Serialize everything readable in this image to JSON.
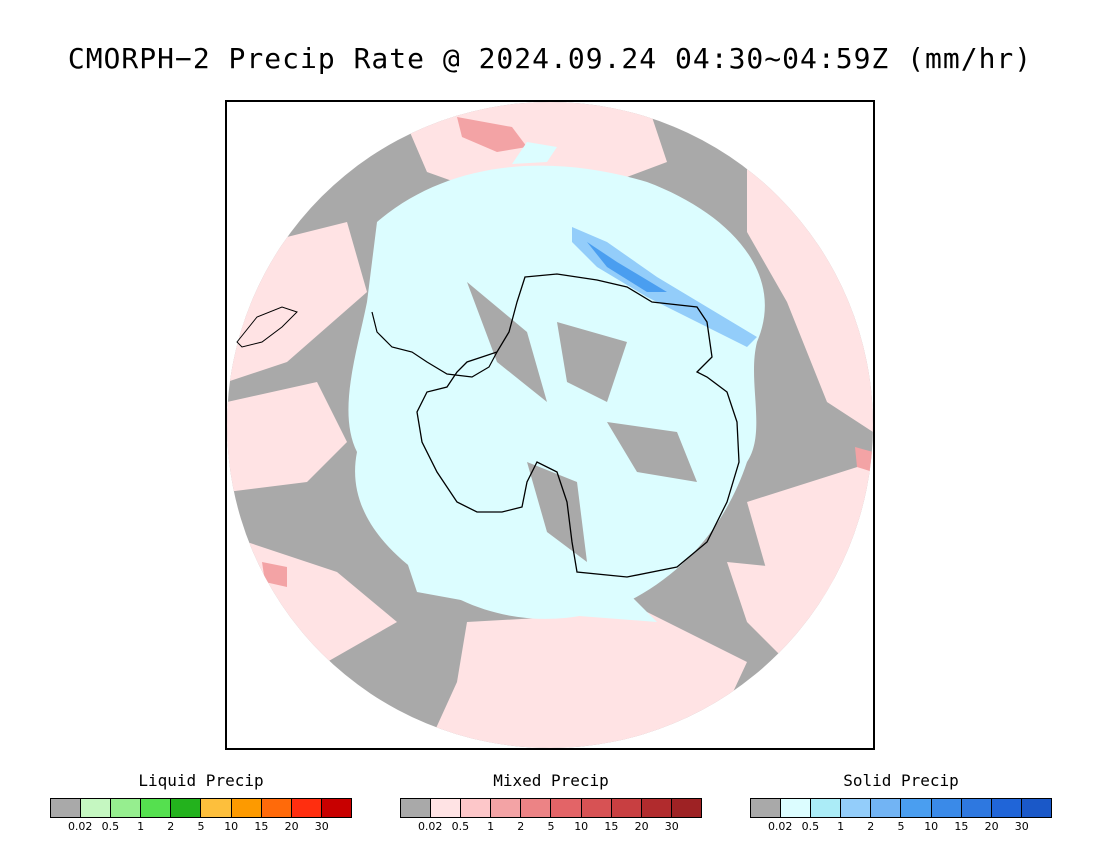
{
  "title": "CMORPH−2 Precip Rate @ 2024.09.24 04:30~04:59Z (mm/hr)",
  "legends": [
    {
      "label": "Liquid Precip",
      "colors": [
        "#a9a9a9",
        "#c5f7c1",
        "#96ee8f",
        "#55e04f",
        "#23b21d",
        "#fdbf3c",
        "#fd9a00",
        "#ff6a0a",
        "#ff2e0f",
        "#c80000"
      ],
      "ticks": [
        "0.02",
        "0.5",
        "1",
        "2",
        "5",
        "10",
        "15",
        "20",
        "30"
      ]
    },
    {
      "label": "Mixed Precip",
      "colors": [
        "#a9a9a9",
        "#ffe3e4",
        "#fdc7c9",
        "#f3a3a5",
        "#ec8385",
        "#e36467",
        "#d75254",
        "#c83f41",
        "#b12b2d",
        "#9e2224"
      ],
      "ticks": [
        "0.02",
        "0.5",
        "1",
        "2",
        "5",
        "10",
        "15",
        "20",
        "30"
      ]
    },
    {
      "label": "Solid Precip",
      "colors": [
        "#a9a9a9",
        "#dcfdff",
        "#abecf7",
        "#93cdfa",
        "#72b4f4",
        "#4a9ef0",
        "#3a8ae8",
        "#2e78e0",
        "#2065d8",
        "#1a58c8"
      ],
      "ticks": [
        "0.02",
        "0.5",
        "1",
        "2",
        "5",
        "10",
        "15",
        "20",
        "30"
      ]
    }
  ],
  "map": {
    "projection": "south-polar-stereographic",
    "colors": {
      "background": "#ffffff",
      "dry": "#a9a9a9",
      "mixed_light": "#ffe3e4",
      "mixed_moderate": "#f3a3a5",
      "solid_light": "#dcfdff",
      "solid_moderate": "#93cdfa",
      "solid_heavy": "#4a9ef0",
      "coastline": "#000000"
    }
  }
}
